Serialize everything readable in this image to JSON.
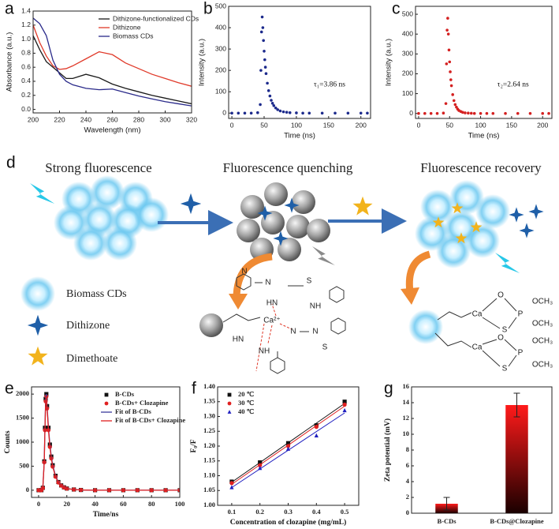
{
  "chart_data": [
    {
      "type": "line",
      "label": "a",
      "x_label": "Wavelength (nm)",
      "y_label": "Absorbance (a.u.)",
      "x": [
        200,
        205,
        210,
        215,
        220,
        225,
        230,
        240,
        250,
        260,
        270,
        280,
        290,
        300,
        310,
        320
      ],
      "series": [
        {
          "name": "Dithizone-functionalized CDs",
          "color": "#1a1a1a",
          "values": [
            1.05,
            0.85,
            0.68,
            0.6,
            0.52,
            0.44,
            0.44,
            0.5,
            0.45,
            0.36,
            0.3,
            0.25,
            0.2,
            0.16,
            0.12,
            0.08
          ]
        },
        {
          "name": "Dithizone",
          "color": "#e03a2a",
          "values": [
            1.2,
            0.95,
            0.76,
            0.62,
            0.57,
            0.58,
            0.62,
            0.72,
            0.82,
            0.78,
            0.66,
            0.58,
            0.5,
            0.44,
            0.38,
            0.33
          ]
        },
        {
          "name": "Biomass CDs",
          "color": "#2a2a8a",
          "values": [
            1.3,
            1.22,
            1.05,
            0.7,
            0.5,
            0.4,
            0.35,
            0.3,
            0.28,
            0.29,
            0.24,
            0.19,
            0.15,
            0.11,
            0.08,
            0.05
          ]
        }
      ],
      "xlim": [
        200,
        320
      ],
      "xticks": [
        200,
        220,
        240,
        260,
        280,
        300,
        320
      ],
      "ylim": [
        -0.05,
        1.4
      ],
      "yticks": [
        {
          "value": 0,
          "label": "0.0"
        },
        0.2,
        0.4,
        0.6,
        0.8,
        {
          "value": 1,
          "label": "1.0"
        },
        1.2,
        1.4
      ],
      "legend": "upper right"
    },
    {
      "type": "scatter",
      "label": "b",
      "x_label": "Time (ns)",
      "y_label": "Intensity (a.u.)",
      "annotation": "τ₁=3.86 ns",
      "color": "#1c2a8c",
      "marker": "circle",
      "x": [
        0,
        10,
        20,
        30,
        40,
        44,
        45,
        46,
        47,
        48,
        49,
        50,
        51,
        52,
        53,
        55,
        57,
        59,
        61,
        63,
        65,
        68,
        71,
        75,
        80,
        85,
        90,
        100,
        110,
        120,
        140,
        160,
        180,
        200,
        210
      ],
      "values": [
        0,
        0,
        0,
        0,
        2,
        40,
        200,
        380,
        450,
        400,
        340,
        290,
        250,
        215,
        185,
        140,
        105,
        80,
        60,
        46,
        35,
        24,
        16,
        10,
        6,
        4,
        2,
        1,
        0,
        0,
        0,
        0,
        0,
        0,
        0
      ],
      "xlim": [
        -5,
        215
      ],
      "xticks": [
        0,
        50,
        100,
        150,
        200
      ],
      "ylim": [
        -25,
        500
      ],
      "yticks": [
        0,
        100,
        200,
        300,
        400,
        500
      ]
    },
    {
      "type": "scatter",
      "label": "c",
      "x_label": "Time (ns)",
      "y_label": "Intensity (a.u.)",
      "annotation": "τ₂=2.64 ns",
      "color": "#d42020",
      "marker": "circle",
      "x": [
        0,
        10,
        20,
        30,
        40,
        44,
        45,
        46,
        47,
        48,
        49,
        50,
        51,
        52,
        53,
        55,
        57,
        59,
        61,
        63,
        65,
        68,
        71,
        75,
        80,
        85,
        90,
        100,
        110,
        120,
        140,
        160,
        180,
        200,
        210
      ],
      "values": [
        0,
        0,
        0,
        0,
        2,
        50,
        250,
        420,
        480,
        400,
        320,
        260,
        210,
        170,
        140,
        95,
        65,
        45,
        32,
        22,
        15,
        10,
        6,
        3,
        2,
        1,
        0,
        0,
        0,
        0,
        0,
        0,
        0,
        0,
        0
      ],
      "xlim": [
        -5,
        215
      ],
      "xticks": [
        0,
        50,
        100,
        150,
        200
      ],
      "ylim": [
        -25,
        540
      ],
      "yticks": [
        0,
        100,
        200,
        300,
        400,
        500
      ]
    },
    {
      "type": "scatter",
      "label": "e",
      "x_label": "Time/ns",
      "y_label": "Counts",
      "x": [
        0,
        2,
        3,
        4,
        4.5,
        5,
        5.5,
        6,
        7,
        8,
        9,
        10,
        12,
        14,
        16,
        18,
        20,
        25,
        30,
        40,
        50,
        60,
        70,
        80,
        90,
        100
      ],
      "series": [
        {
          "name": "B-CDs",
          "color": "#111111",
          "marker": "square",
          "values": [
            0,
            0,
            50,
            600,
            1300,
            1900,
            2000,
            1750,
            1300,
            950,
            700,
            520,
            300,
            170,
            100,
            60,
            35,
            15,
            5,
            0,
            0,
            0,
            0,
            0,
            0,
            0
          ]
        },
        {
          "name": "B-CDs+ Clozapine",
          "color": "#e02020",
          "marker": "circle",
          "values": [
            0,
            0,
            45,
            580,
            1250,
            1850,
            1950,
            1700,
            1250,
            900,
            660,
            490,
            280,
            160,
            95,
            55,
            32,
            14,
            5,
            0,
            0,
            0,
            0,
            0,
            0,
            0
          ]
        },
        {
          "name": "Fit of B-CDs",
          "color": "#3a3a9a",
          "style": "line",
          "values": [
            0,
            0,
            50,
            600,
            1300,
            1900,
            2000,
            1750,
            1300,
            950,
            700,
            520,
            300,
            170,
            100,
            60,
            35,
            15,
            5,
            0,
            0,
            0,
            0,
            0,
            0,
            0
          ]
        },
        {
          "name": "Fit of B-CDs+ Clozapine",
          "color": "#e02020",
          "style": "line",
          "values": [
            0,
            0,
            45,
            580,
            1250,
            1850,
            1950,
            1700,
            1250,
            900,
            660,
            490,
            280,
            160,
            95,
            55,
            32,
            14,
            5,
            0,
            0,
            0,
            0,
            0,
            0,
            0
          ]
        }
      ],
      "xlim": [
        -5,
        100
      ],
      "xticks": [
        0,
        20,
        40,
        60,
        80,
        100
      ],
      "ylim": [
        -150,
        2150
      ],
      "yticks": [
        0,
        500,
        1000,
        1500,
        2000
      ],
      "legend": "upper right"
    },
    {
      "type": "scatter",
      "label": "f",
      "x_label": "Concentration of clozapine (mg/mL)",
      "y_label": "F₀/F",
      "fit_lines": true,
      "x": [
        0.1,
        0.2,
        0.3,
        0.4,
        0.5
      ],
      "series": [
        {
          "name": "20 ℃",
          "color": "#111111",
          "marker": "square",
          "values": [
            1.08,
            1.145,
            1.21,
            1.27,
            1.35
          ]
        },
        {
          "name": "30 ℃",
          "color": "#e02020",
          "marker": "circle",
          "values": [
            1.075,
            1.135,
            1.2,
            1.265,
            1.34
          ]
        },
        {
          "name": "40 ℃",
          "color": "#2020c0",
          "marker": "triangle",
          "values": [
            1.06,
            1.125,
            1.19,
            1.235,
            1.32
          ]
        }
      ],
      "xlim": [
        0.05,
        0.55
      ],
      "xticks": [
        0.1,
        0.2,
        0.3,
        0.4,
        0.5
      ],
      "ylim": [
        1.0,
        1.4
      ],
      "yticks": [
        {
          "value": 1,
          "label": "1.00"
        },
        1.05,
        {
          "value": 1.1,
          "label": "1.10"
        },
        1.15,
        {
          "value": 1.2,
          "label": "1.20"
        },
        1.25,
        {
          "value": 1.3,
          "label": "1.30"
        },
        1.35,
        {
          "value": 1.4,
          "label": "1.40"
        }
      ],
      "legend": "upper left"
    },
    {
      "type": "bar",
      "label": "g",
      "y_label": "Zeta potential (mV)",
      "categories": [
        "B-CDs",
        "B-CDs@Clozapine"
      ],
      "values": [
        1.2,
        13.7
      ],
      "errors": [
        0.8,
        1.5
      ],
      "colors": [
        "#ff1a1a",
        "#1a0000"
      ],
      "ylim": [
        0,
        16
      ],
      "yticks": [
        0,
        2,
        4,
        6,
        8,
        10,
        12,
        14,
        16
      ]
    }
  ],
  "diagram": {
    "label": "d",
    "stages": [
      "Strong fluorescence",
      "Fluorescence quenching",
      "Fluorescence recovery"
    ],
    "legend": [
      "Biomass CDs",
      "Dithizone",
      "Dimethoate"
    ],
    "quenched_structure": [
      "N",
      "N",
      "S",
      "HN",
      "NH",
      "Ca²⁺",
      "N",
      "N",
      "S",
      "NH",
      "HN"
    ],
    "recovered_structure": [
      "Ca",
      "O",
      "P",
      "OCH₃",
      "S",
      "OCH₃",
      "Ca",
      "O",
      "P",
      "OCH₃",
      "S",
      "OCH₃"
    ]
  }
}
